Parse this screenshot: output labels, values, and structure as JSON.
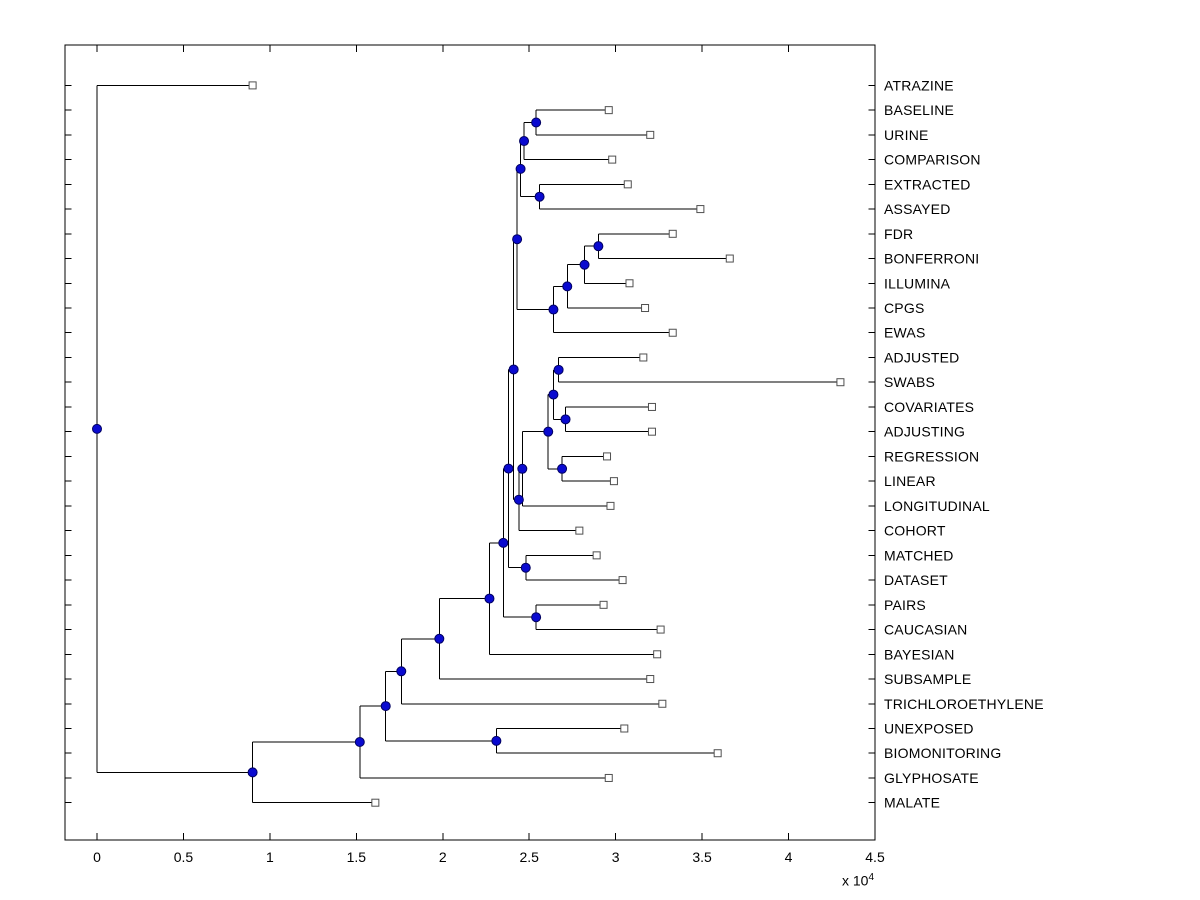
{
  "figure": {
    "background": "#ffffff",
    "plot_background": "#ffffff",
    "border_color": "#000000",
    "line_color": "#000000",
    "branch_node_color": "#0a0ad0",
    "branch_node_edge": "#000060",
    "leaf_marker_fill": "#ffffff",
    "leaf_marker_edge": "#505050",
    "label_color": "#000000"
  },
  "chart_data": {
    "type": "dendrogram",
    "orientation": "horizontal-right-leaves",
    "title": "",
    "xlabel": "",
    "ylabel": "",
    "grid": false,
    "x_axis": {
      "min": 0,
      "max": 4.5,
      "tick_values": [
        0,
        0.5,
        1,
        1.5,
        2,
        2.5,
        3,
        3.5,
        4,
        4.5
      ],
      "tick_labels": [
        "0",
        "0.5",
        "1",
        "1.5",
        "2",
        "2.5",
        "3",
        "3.5",
        "4",
        "4.5"
      ],
      "multiplier_base": "x 10",
      "multiplier_exponent": "4",
      "unit_scale": 10000
    },
    "leaf_labels": [
      "ATRAZINE",
      "BASELINE",
      "URINE",
      "COMPARISON",
      "EXTRACTED",
      "ASSAYED",
      "FDR",
      "BONFERRONI",
      "ILLUMINA",
      "CPGS",
      "EWAS",
      "ADJUSTED",
      "SWABS",
      "COVARIATES",
      "ADJUSTING",
      "REGRESSION",
      "LINEAR",
      "LONGITUDINAL",
      "COHORT",
      "MATCHED",
      "DATASET",
      "PAIRS",
      "CAUCASIAN",
      "BAYESIAN",
      "SUBSAMPLE",
      "TRICHLOROETHYLENE",
      "UNEXPOSED",
      "BIOMONITORING",
      "GLYPHOSATE",
      "MALATE"
    ],
    "tree": {
      "h": 0.0,
      "children": [
        {
          "leaf": "ATRAZINE",
          "tip": 0.9
        },
        {
          "h": 0.9,
          "children": [
            {
              "h": 1.52,
              "children": [
                {
                  "h": 1.67,
                  "children": [
                    {
                      "h": 1.76,
                      "children": [
                        {
                          "h": 1.98,
                          "children": [
                            {
                              "h": 2.27,
                              "children": [
                                {
                                  "h": 2.35,
                                  "children": [
                                    {
                                      "h": 2.38,
                                      "children": [
                                        {
                                          "h": 2.41,
                                          "children": [
                                            {
                                              "h": 2.43,
                                              "children": [
                                                {
                                                  "h": 2.45,
                                                  "children": [
                                                    {
                                                      "h": 2.47,
                                                      "children": [
                                                        {
                                                          "h": 2.54,
                                                          "children": [
                                                            {
                                                              "leaf": "BASELINE",
                                                              "tip": 2.96
                                                            },
                                                            {
                                                              "leaf": "URINE",
                                                              "tip": 3.2
                                                            }
                                                          ]
                                                        },
                                                        {
                                                          "leaf": "COMPARISON",
                                                          "tip": 2.98
                                                        }
                                                      ]
                                                    },
                                                    {
                                                      "h": 2.56,
                                                      "children": [
                                                        {
                                                          "leaf": "EXTRACTED",
                                                          "tip": 3.07
                                                        },
                                                        {
                                                          "leaf": "ASSAYED",
                                                          "tip": 3.49
                                                        }
                                                      ]
                                                    }
                                                  ]
                                                },
                                                {
                                                  "h": 2.64,
                                                  "children": [
                                                    {
                                                      "h": 2.72,
                                                      "children": [
                                                        {
                                                          "h": 2.82,
                                                          "children": [
                                                            {
                                                              "h": 2.9,
                                                              "children": [
                                                                {
                                                                  "leaf": "FDR",
                                                                  "tip": 3.33
                                                                },
                                                                {
                                                                  "leaf": "BONFERRONI",
                                                                  "tip": 3.66
                                                                }
                                                              ]
                                                            },
                                                            {
                                                              "leaf": "ILLUMINA",
                                                              "tip": 3.08
                                                            }
                                                          ]
                                                        },
                                                        {
                                                          "leaf": "CPGS",
                                                          "tip": 3.17
                                                        }
                                                      ]
                                                    },
                                                    {
                                                      "leaf": "EWAS",
                                                      "tip": 3.33
                                                    }
                                                  ]
                                                }
                                              ]
                                            },
                                            {
                                              "h": 2.44,
                                              "children": [
                                                {
                                                  "h": 2.46,
                                                  "children": [
                                                    {
                                                      "h": 2.61,
                                                      "children": [
                                                        {
                                                          "h": 2.64,
                                                          "children": [
                                                            {
                                                              "h": 2.67,
                                                              "children": [
                                                                {
                                                                  "leaf": "ADJUSTED",
                                                                  "tip": 3.16
                                                                },
                                                                {
                                                                  "leaf": "SWABS",
                                                                  "tip": 4.3
                                                                }
                                                              ]
                                                            },
                                                            {
                                                              "h": 2.71,
                                                              "children": [
                                                                {
                                                                  "leaf": "COVARIATES",
                                                                  "tip": 3.21
                                                                },
                                                                {
                                                                  "leaf": "ADJUSTING",
                                                                  "tip": 3.21
                                                                }
                                                              ]
                                                            }
                                                          ]
                                                        },
                                                        {
                                                          "h": 2.69,
                                                          "children": [
                                                            {
                                                              "leaf": "REGRESSION",
                                                              "tip": 2.95
                                                            },
                                                            {
                                                              "leaf": "LINEAR",
                                                              "tip": 2.99
                                                            }
                                                          ]
                                                        }
                                                      ]
                                                    },
                                                    {
                                                      "leaf": "LONGITUDINAL",
                                                      "tip": 2.97
                                                    }
                                                  ]
                                                },
                                                {
                                                  "leaf": "COHORT",
                                                  "tip": 2.79
                                                }
                                              ]
                                            }
                                          ]
                                        },
                                        {
                                          "h": 2.48,
                                          "children": [
                                            {
                                              "leaf": "MATCHED",
                                              "tip": 2.89
                                            },
                                            {
                                              "leaf": "DATASET",
                                              "tip": 3.04
                                            }
                                          ]
                                        }
                                      ]
                                    },
                                    {
                                      "h": 2.54,
                                      "children": [
                                        {
                                          "leaf": "PAIRS",
                                          "tip": 2.93
                                        },
                                        {
                                          "leaf": "CAUCASIAN",
                                          "tip": 3.26
                                        }
                                      ]
                                    }
                                  ]
                                },
                                {
                                  "leaf": "BAYESIAN",
                                  "tip": 3.24
                                }
                              ]
                            },
                            {
                              "leaf": "SUBSAMPLE",
                              "tip": 3.2
                            }
                          ]
                        },
                        {
                          "leaf": "TRICHLOROETHYLENE",
                          "tip": 3.27
                        }
                      ]
                    },
                    {
                      "h": 2.31,
                      "children": [
                        {
                          "leaf": "UNEXPOSED",
                          "tip": 3.05
                        },
                        {
                          "leaf": "BIOMONITORING",
                          "tip": 3.59
                        }
                      ]
                    }
                  ]
                },
                {
                  "leaf": "GLYPHOSATE",
                  "tip": 2.96
                }
              ]
            },
            {
              "leaf": "MALATE",
              "tip": 1.61
            }
          ]
        }
      ]
    }
  }
}
